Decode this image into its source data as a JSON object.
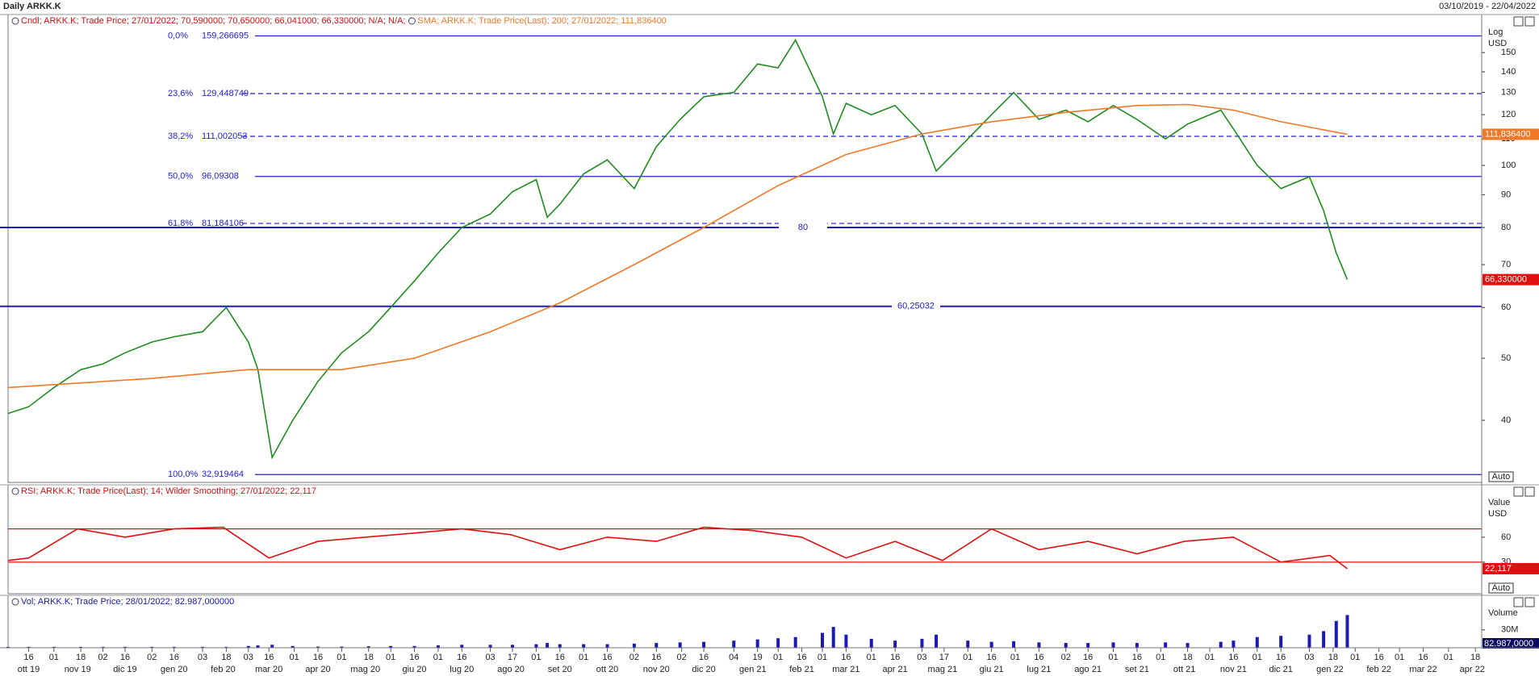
{
  "window": {
    "title": "Daily ARKK.K",
    "range": "03/10/2019 - 22/04/2022"
  },
  "chart_data": [
    {
      "type": "line",
      "header": "Cndl; ARKK.K; Trade Price;  27/01/2022; 70,590000; 70,650000; 66,041000; 66,330000; N/A; N/A;",
      "header_color": "#d01010",
      "header2": "SMA; ARKK.K; Trade Price(Last);  200;  27/01/2022; 111,836400",
      "header2_color": "#f07828",
      "axis_labels": [
        "Log",
        "USD"
      ],
      "log_scale": true,
      "xlim": [
        "2019-10-03",
        "2022-04-22"
      ],
      "ylim": [
        32,
        172
      ],
      "yticks": [
        40,
        50,
        60,
        70,
        80,
        90,
        100,
        110,
        120,
        130,
        140,
        150
      ],
      "button": "Auto",
      "series": [
        {
          "color": "#1e8c1e",
          "x": [
            "2019-10-03",
            "2019-10-16",
            "2019-11-01",
            "2019-11-18",
            "2019-12-02",
            "2019-12-16",
            "2020-01-02",
            "2020-01-16",
            "2020-02-03",
            "2020-02-18",
            "2020-03-03",
            "2020-03-09",
            "2020-03-18",
            "2020-03-31",
            "2020-04-16",
            "2020-05-01",
            "2020-05-18",
            "2020-06-01",
            "2020-06-16",
            "2020-07-01",
            "2020-07-16",
            "2020-08-03",
            "2020-08-17",
            "2020-09-01",
            "2020-09-08",
            "2020-09-16",
            "2020-10-01",
            "2020-10-16",
            "2020-11-02",
            "2020-11-16",
            "2020-12-01",
            "2020-12-16",
            "2021-01-04",
            "2021-01-19",
            "2021-02-01",
            "2021-02-12",
            "2021-03-01",
            "2021-03-08",
            "2021-03-16",
            "2021-04-01",
            "2021-04-16",
            "2021-05-03",
            "2021-05-12",
            "2021-06-01",
            "2021-06-16",
            "2021-06-30",
            "2021-07-16",
            "2021-08-02",
            "2021-08-16",
            "2021-09-01",
            "2021-09-16",
            "2021-10-04",
            "2021-10-18",
            "2021-11-08",
            "2021-11-16",
            "2021-12-01",
            "2021-12-16",
            "2022-01-03",
            "2022-01-12",
            "2022-01-20",
            "2022-01-27"
          ],
          "values": [
            41,
            42,
            45,
            48,
            49,
            51,
            53,
            54,
            55,
            60,
            53,
            48,
            35,
            40,
            46,
            51,
            55,
            60,
            66,
            73,
            80,
            84,
            91,
            95,
            83,
            87,
            97,
            102,
            92,
            107,
            118,
            128,
            130,
            144,
            142,
            157,
            128,
            112,
            125,
            120,
            124,
            112,
            98,
            110,
            120,
            130,
            118,
            122,
            117,
            124,
            118,
            110,
            116,
            122,
            114,
            100,
            92,
            96,
            85,
            73,
            66.33
          ]
        },
        {
          "color": "#f07828",
          "x": [
            "2019-10-03",
            "2020-01-02",
            "2020-03-03",
            "2020-05-01",
            "2020-06-16",
            "2020-08-03",
            "2020-09-16",
            "2020-11-02",
            "2020-12-16",
            "2021-02-01",
            "2021-03-16",
            "2021-05-03",
            "2021-06-16",
            "2021-08-02",
            "2021-09-16",
            "2021-10-18",
            "2021-11-16",
            "2021-12-16",
            "2022-01-27"
          ],
          "values": [
            45,
            46.5,
            48,
            48,
            50,
            55,
            61,
            70,
            80,
            93,
            104,
            112,
            117,
            121,
            124,
            124.5,
            122,
            117,
            111.8364
          ]
        }
      ],
      "fib_color": "#2222cc",
      "fib_levels": [
        {
          "pct": "0,0%",
          "value": 159.266695,
          "label": "159,266695",
          "dashed": false
        },
        {
          "pct": "23,6%",
          "value": 129.448749,
          "label": "129,448749",
          "dashed": true
        },
        {
          "pct": "38,2%",
          "value": 111.002053,
          "label": "111,002053",
          "dashed": true
        },
        {
          "pct": "50,0%",
          "value": 96.09308,
          "label": "96,09308",
          "dashed": false
        },
        {
          "pct": "61,8%",
          "value": 81.184106,
          "label": "81,184106",
          "dashed": true
        },
        {
          "pct": "100,0%",
          "value": 32.919464,
          "label": "32,919464",
          "dashed": false
        }
      ],
      "hlines": [
        {
          "value": 80,
          "label": "80"
        },
        {
          "value": 60.25032,
          "label": "60,25032"
        }
      ],
      "last_labels": [
        {
          "value": 111.8364,
          "label": "111,836400",
          "color": "#f07828"
        },
        {
          "value": 66.33,
          "label": "66,330000",
          "color": "#e01010"
        }
      ]
    },
    {
      "type": "line",
      "header": "RSI; ARKK.K; Trade Price(Last);  14; Wilder Smoothing;  27/01/2022; 22,117",
      "header_color": "#d01010",
      "axis_labels": [
        "Value",
        "USD"
      ],
      "ylim": [
        -8,
        123
      ],
      "yticks": [
        30,
        60
      ],
      "levels": [
        70,
        30
      ],
      "level_color": "#e01010",
      "button": "Auto",
      "series": [
        {
          "color": "#e01010",
          "x": [
            "2019-10-03",
            "2019-10-16",
            "2019-11-16",
            "2019-12-16",
            "2020-01-16",
            "2020-02-16",
            "2020-03-16",
            "2020-04-16",
            "2020-05-16",
            "2020-06-16",
            "2020-07-16",
            "2020-08-16",
            "2020-09-16",
            "2020-10-16",
            "2020-11-16",
            "2020-12-16",
            "2021-01-16",
            "2021-02-16",
            "2021-03-16",
            "2021-04-16",
            "2021-05-16",
            "2021-06-16",
            "2021-07-16",
            "2021-08-16",
            "2021-09-16",
            "2021-10-16",
            "2021-11-16",
            "2021-12-16",
            "2022-01-16",
            "2022-01-27"
          ],
          "values": [
            32,
            35,
            70,
            60,
            70,
            72,
            35,
            55,
            60,
            65,
            70,
            63,
            45,
            60,
            55,
            72,
            68,
            60,
            35,
            55,
            32,
            70,
            45,
            55,
            40,
            55,
            60,
            30,
            38,
            22.117
          ]
        }
      ],
      "last_label": {
        "value": 22.117,
        "label": "22,117",
        "color": "#e01010"
      }
    },
    {
      "type": "bar",
      "header": "Vol; ARKK.K; Trade Price;  28/01/2022; 82.987,000000",
      "header_color": "#1a1aa0",
      "axis_labels": [
        "Volume"
      ],
      "ylim": [
        0,
        88000000
      ],
      "yticks": [
        {
          "value": 30000000,
          "label": "30M"
        }
      ],
      "last_label": "82.987,0000",
      "series": [
        {
          "color": "#1a1ab4",
          "x": [
            "2019-10-03",
            "2019-10-16",
            "2019-11-01",
            "2019-11-18",
            "2019-12-02",
            "2019-12-16",
            "2020-01-02",
            "2020-01-16",
            "2020-02-03",
            "2020-02-18",
            "2020-03-03",
            "2020-03-09",
            "2020-03-18",
            "2020-03-31",
            "2020-04-16",
            "2020-05-01",
            "2020-05-18",
            "2020-06-01",
            "2020-06-16",
            "2020-07-01",
            "2020-07-16",
            "2020-08-03",
            "2020-08-17",
            "2020-09-01",
            "2020-09-08",
            "2020-09-16",
            "2020-10-01",
            "2020-10-16",
            "2020-11-02",
            "2020-11-16",
            "2020-12-01",
            "2020-12-16",
            "2021-01-04",
            "2021-01-19",
            "2021-02-01",
            "2021-02-12",
            "2021-03-01",
            "2021-03-08",
            "2021-03-16",
            "2021-04-01",
            "2021-04-16",
            "2021-05-03",
            "2021-05-12",
            "2021-06-01",
            "2021-06-16",
            "2021-06-30",
            "2021-07-16",
            "2021-08-02",
            "2021-08-16",
            "2021-09-01",
            "2021-09-16",
            "2021-10-04",
            "2021-10-18",
            "2021-11-08",
            "2021-11-16",
            "2021-12-01",
            "2021-12-16",
            "2022-01-03",
            "2022-01-12",
            "2022-01-20",
            "2022-01-27"
          ],
          "values": [
            1500000,
            1500000,
            1500000,
            1500000,
            1500000,
            1500000,
            1500000,
            1500000,
            1500000,
            1500000,
            3000000,
            4000000,
            5000000,
            3000000,
            2000000,
            2000000,
            2500000,
            3000000,
            3000000,
            4000000,
            5000000,
            5000000,
            5000000,
            6000000,
            8000000,
            6000000,
            6000000,
            6000000,
            7000000,
            8000000,
            9000000,
            10000000,
            12000000,
            14000000,
            16000000,
            18000000,
            25000000,
            35000000,
            22000000,
            15000000,
            12000000,
            15000000,
            22000000,
            12000000,
            10000000,
            11000000,
            9000000,
            8000000,
            8000000,
            9000000,
            8000000,
            9000000,
            8000000,
            10000000,
            12000000,
            18000000,
            20000000,
            22000000,
            28000000,
            45000000,
            55000000
          ]
        }
      ],
      "xticks": [
        {
          "value": "2019-10-16",
          "label": "16"
        },
        {
          "value": "2019-11-01",
          "label": "01"
        },
        {
          "value": "2019-11-18",
          "label": "18"
        },
        {
          "value": "2019-12-02",
          "label": "02"
        },
        {
          "value": "2019-12-16",
          "label": "16"
        },
        {
          "value": "2020-01-02",
          "label": "02"
        },
        {
          "value": "2020-01-16",
          "label": "16"
        },
        {
          "value": "2020-02-03",
          "label": "03"
        },
        {
          "value": "2020-02-18",
          "label": "18"
        },
        {
          "value": "2020-03-03",
          "label": "03"
        },
        {
          "value": "2020-03-16",
          "label": "16"
        },
        {
          "value": "2020-04-01",
          "label": "01"
        },
        {
          "value": "2020-04-16",
          "label": "16"
        },
        {
          "value": "2020-05-01",
          "label": "01"
        },
        {
          "value": "2020-05-18",
          "label": "18"
        },
        {
          "value": "2020-06-01",
          "label": "01"
        },
        {
          "value": "2020-06-16",
          "label": "16"
        },
        {
          "value": "2020-07-01",
          "label": "01"
        },
        {
          "value": "2020-07-16",
          "label": "16"
        },
        {
          "value": "2020-08-03",
          "label": "03"
        },
        {
          "value": "2020-08-17",
          "label": "17"
        },
        {
          "value": "2020-09-01",
          "label": "01"
        },
        {
          "value": "2020-09-16",
          "label": "16"
        },
        {
          "value": "2020-10-01",
          "label": "01"
        },
        {
          "value": "2020-10-16",
          "label": "16"
        },
        {
          "value": "2020-11-02",
          "label": "02"
        },
        {
          "value": "2020-11-16",
          "label": "16"
        },
        {
          "value": "2020-12-02",
          "label": "02"
        },
        {
          "value": "2020-12-16",
          "label": "16"
        },
        {
          "value": "2021-01-04",
          "label": "04"
        },
        {
          "value": "2021-01-19",
          "label": "19"
        },
        {
          "value": "2021-02-01",
          "label": "01"
        },
        {
          "value": "2021-02-16",
          "label": "16"
        },
        {
          "value": "2021-03-01",
          "label": "01"
        },
        {
          "value": "2021-03-16",
          "label": "16"
        },
        {
          "value": "2021-04-01",
          "label": "01"
        },
        {
          "value": "2021-04-16",
          "label": "16"
        },
        {
          "value": "2021-05-03",
          "label": "03"
        },
        {
          "value": "2021-05-17",
          "label": "17"
        },
        {
          "value": "2021-06-01",
          "label": "01"
        },
        {
          "value": "2021-06-16",
          "label": "16"
        },
        {
          "value": "2021-07-01",
          "label": "01"
        },
        {
          "value": "2021-07-16",
          "label": "16"
        },
        {
          "value": "2021-08-02",
          "label": "02"
        },
        {
          "value": "2021-08-16",
          "label": "16"
        },
        {
          "value": "2021-09-01",
          "label": "01"
        },
        {
          "value": "2021-09-16",
          "label": "16"
        },
        {
          "value": "2021-10-01",
          "label": "01"
        },
        {
          "value": "2021-10-18",
          "label": "18"
        },
        {
          "value": "2021-11-01",
          "label": "01"
        },
        {
          "value": "2021-11-16",
          "label": "16"
        },
        {
          "value": "2021-12-01",
          "label": "01"
        },
        {
          "value": "2021-12-16",
          "label": "16"
        },
        {
          "value": "2022-01-03",
          "label": "03"
        },
        {
          "value": "2022-01-18",
          "label": "18"
        },
        {
          "value": "2022-02-01",
          "label": "01"
        },
        {
          "value": "2022-02-16",
          "label": "16"
        },
        {
          "value": "2022-03-01",
          "label": "01"
        },
        {
          "value": "2022-03-16",
          "label": "16"
        },
        {
          "value": "2022-04-01",
          "label": "01"
        },
        {
          "value": "2022-04-18",
          "label": "18"
        }
      ],
      "month_ticks": [
        {
          "value": "2019-10-16",
          "label": "ott 19"
        },
        {
          "value": "2019-11-16",
          "label": "nov 19"
        },
        {
          "value": "2019-12-16",
          "label": "dic 19"
        },
        {
          "value": "2020-01-16",
          "label": "gen 20"
        },
        {
          "value": "2020-02-16",
          "label": "feb 20"
        },
        {
          "value": "2020-03-16",
          "label": "mar 20"
        },
        {
          "value": "2020-04-16",
          "label": "apr 20"
        },
        {
          "value": "2020-05-16",
          "label": "mag 20"
        },
        {
          "value": "2020-06-16",
          "label": "giu 20"
        },
        {
          "value": "2020-07-16",
          "label": "lug 20"
        },
        {
          "value": "2020-08-16",
          "label": "ago 20"
        },
        {
          "value": "2020-09-16",
          "label": "set 20"
        },
        {
          "value": "2020-10-16",
          "label": "ott 20"
        },
        {
          "value": "2020-11-16",
          "label": "nov 20"
        },
        {
          "value": "2020-12-16",
          "label": "dic 20"
        },
        {
          "value": "2021-01-16",
          "label": "gen 21"
        },
        {
          "value": "2021-02-16",
          "label": "feb 21"
        },
        {
          "value": "2021-03-16",
          "label": "mar 21"
        },
        {
          "value": "2021-04-16",
          "label": "apr 21"
        },
        {
          "value": "2021-05-16",
          "label": "mag 21"
        },
        {
          "value": "2021-06-16",
          "label": "giu 21"
        },
        {
          "value": "2021-07-16",
          "label": "lug 21"
        },
        {
          "value": "2021-08-16",
          "label": "ago 21"
        },
        {
          "value": "2021-09-16",
          "label": "set 21"
        },
        {
          "value": "2021-10-16",
          "label": "ott 21"
        },
        {
          "value": "2021-11-16",
          "label": "nov 21"
        },
        {
          "value": "2021-12-16",
          "label": "dic 21"
        },
        {
          "value": "2022-01-16",
          "label": "gen 22"
        },
        {
          "value": "2022-02-16",
          "label": "feb 22"
        },
        {
          "value": "2022-03-16",
          "label": "mar 22"
        },
        {
          "value": "2022-04-16",
          "label": "apr 22"
        }
      ]
    }
  ]
}
